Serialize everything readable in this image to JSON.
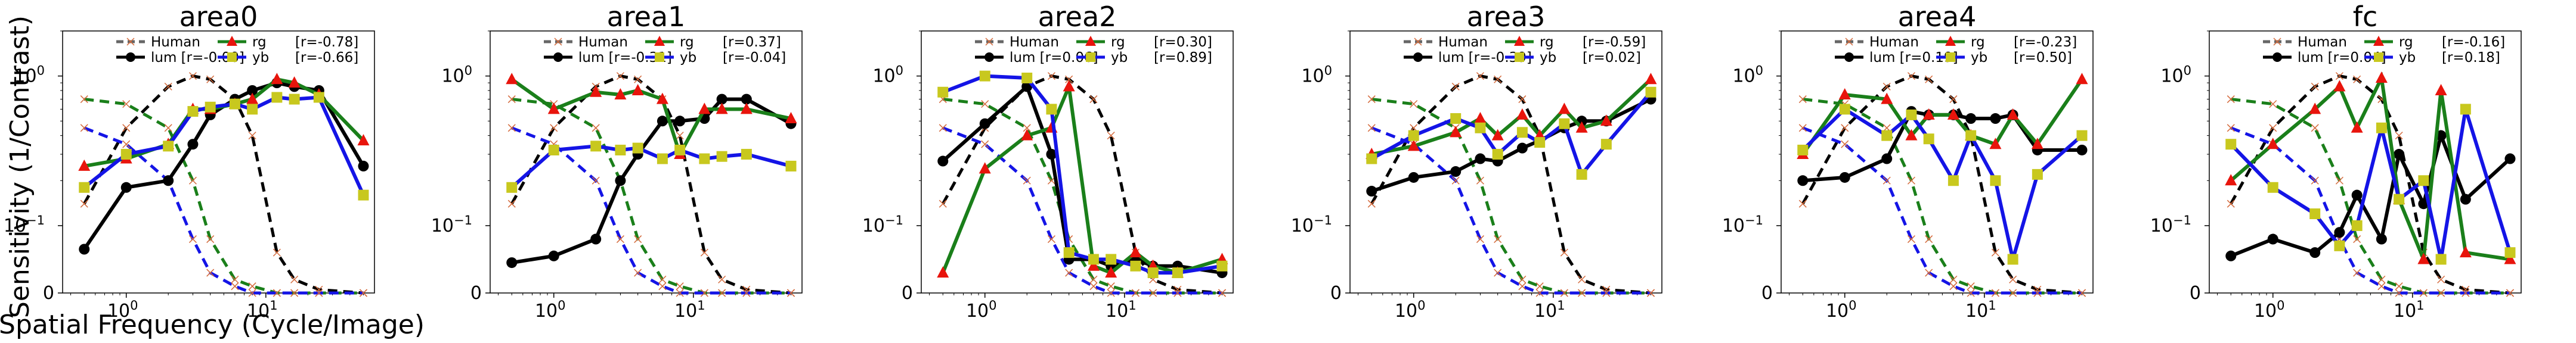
{
  "figure": {
    "ylabel": "Sensitivity (1/Contrast)",
    "xlabel": "Spatial Frequency (Cycle/Image)"
  },
  "colors": {
    "human": "#666666",
    "lum": "#000000",
    "rg_line": "#1a7f1a",
    "rg_marker": "#e8140c",
    "yb_line": "#1414e6",
    "yb_marker": "#c8c81e",
    "human_dash_lum": "#000000",
    "human_dash_rg": "#1a7f1a",
    "human_dash_yb": "#1414e6"
  },
  "chart_data": [
    {
      "type": "line",
      "title": "area0",
      "x": [
        0.5,
        1,
        2,
        3,
        4,
        6,
        8,
        12,
        16,
        24,
        50
      ],
      "xscale": "log",
      "yscale": "symlog",
      "ylim": [
        0,
        2
      ],
      "xticks": [
        "10^0",
        "10^1"
      ],
      "yticks": [
        "0",
        "10^-1",
        "10^0"
      ],
      "legend": {
        "placement": "top",
        "entries": [
          "Human",
          "lum [r=-0.00]",
          "rg",
          "[r=-0.78]",
          "yb",
          "[r=-0.66]"
        ]
      },
      "series": [
        {
          "name": "lum",
          "values": [
            0.065,
            0.18,
            0.2,
            0.35,
            0.55,
            0.7,
            0.8,
            0.9,
            0.85,
            0.8,
            0.25
          ]
        },
        {
          "name": "rg",
          "values": [
            0.25,
            0.28,
            0.35,
            0.6,
            0.6,
            0.65,
            0.7,
            0.95,
            0.9,
            0.75,
            0.37
          ]
        },
        {
          "name": "yb",
          "values": [
            0.18,
            0.3,
            0.34,
            0.58,
            0.62,
            0.65,
            0.6,
            0.72,
            0.7,
            0.72,
            0.16
          ]
        }
      ]
    },
    {
      "type": "line",
      "title": "area1",
      "x": [
        0.5,
        1,
        2,
        3,
        4,
        6,
        8,
        12,
        16,
        24,
        50
      ],
      "xscale": "log",
      "yscale": "symlog",
      "ylim": [
        0,
        2
      ],
      "xticks": [
        "10^0",
        "10^1"
      ],
      "yticks": [
        "0",
        "10^-1",
        "10^0"
      ],
      "legend": {
        "placement": "top",
        "entries": [
          "Human",
          "lum [r=-0.31]",
          "rg",
          "[r=0.37]",
          "yb",
          "[r=-0.04]"
        ]
      },
      "series": [
        {
          "name": "lum",
          "values": [
            0.045,
            0.055,
            0.08,
            0.2,
            0.3,
            0.5,
            0.5,
            0.52,
            0.7,
            0.7,
            0.48
          ]
        },
        {
          "name": "rg",
          "values": [
            0.95,
            0.6,
            0.78,
            0.75,
            0.8,
            0.7,
            0.3,
            0.6,
            0.6,
            0.6,
            0.52
          ]
        },
        {
          "name": "yb",
          "values": [
            0.18,
            0.32,
            0.34,
            0.32,
            0.33,
            0.28,
            0.32,
            0.28,
            0.29,
            0.3,
            0.25
          ]
        }
      ]
    },
    {
      "type": "line",
      "title": "area2",
      "x": [
        0.5,
        1,
        2,
        3,
        4,
        6,
        8,
        12,
        16,
        24,
        50
      ],
      "xscale": "log",
      "yscale": "symlog",
      "ylim": [
        0,
        2
      ],
      "xticks": [
        "10^0",
        "10^1"
      ],
      "yticks": [
        "0",
        "10^-1",
        "10^0"
      ],
      "legend": {
        "placement": "top",
        "entries": [
          "Human",
          "lum [r=0.06]",
          "rg",
          "[r=0.30]",
          "yb",
          "[r=0.89]"
        ]
      },
      "series": [
        {
          "name": "lum",
          "values": [
            0.27,
            0.48,
            0.85,
            0.3,
            0.05,
            0.05,
            0.04,
            0.05,
            0.04,
            0.04,
            0.03
          ]
        },
        {
          "name": "rg",
          "values": [
            0.03,
            0.24,
            0.4,
            0.45,
            0.85,
            0.04,
            0.03,
            0.06,
            0.04,
            0.03,
            0.05
          ]
        },
        {
          "name": "yb",
          "values": [
            0.78,
            1.0,
            0.97,
            0.6,
            0.06,
            0.05,
            0.05,
            0.04,
            0.03,
            0.03,
            0.04
          ]
        }
      ]
    },
    {
      "type": "line",
      "title": "area3",
      "x": [
        0.5,
        1,
        2,
        3,
        4,
        6,
        8,
        12,
        16,
        24,
        50
      ],
      "xscale": "log",
      "yscale": "symlog",
      "ylim": [
        0,
        2
      ],
      "xticks": [
        "10^0",
        "10^1"
      ],
      "yticks": [
        "0",
        "10^-1",
        "10^0"
      ],
      "legend": {
        "placement": "top",
        "entries": [
          "Human",
          "lum [r=-0.39]",
          "rg",
          "[r=-0.59]",
          "yb",
          "[r=0.02]"
        ]
      },
      "series": [
        {
          "name": "lum",
          "values": [
            0.17,
            0.21,
            0.23,
            0.28,
            0.27,
            0.33,
            0.37,
            0.45,
            0.5,
            0.5,
            0.7
          ]
        },
        {
          "name": "rg",
          "values": [
            0.3,
            0.34,
            0.42,
            0.52,
            0.4,
            0.55,
            0.4,
            0.6,
            0.45,
            0.5,
            0.95
          ]
        },
        {
          "name": "yb",
          "values": [
            0.28,
            0.4,
            0.52,
            0.45,
            0.3,
            0.42,
            0.36,
            0.48,
            0.22,
            0.35,
            0.78
          ]
        }
      ]
    },
    {
      "type": "line",
      "title": "area4",
      "x": [
        0.5,
        1,
        2,
        3,
        4,
        6,
        8,
        12,
        16,
        24,
        50
      ],
      "xscale": "log",
      "yscale": "symlog",
      "ylim": [
        0,
        2
      ],
      "xticks": [
        "10^0",
        "10^1"
      ],
      "yticks": [
        "0",
        "10^-1",
        "10^0"
      ],
      "legend": {
        "placement": "top",
        "entries": [
          "Human",
          "lum [r=0.19]",
          "rg",
          "[r=-0.23]",
          "yb",
          "[r=0.50]"
        ]
      },
      "series": [
        {
          "name": "lum",
          "values": [
            0.2,
            0.21,
            0.28,
            0.58,
            0.55,
            0.55,
            0.52,
            0.52,
            0.55,
            0.32,
            0.32
          ]
        },
        {
          "name": "rg",
          "values": [
            0.3,
            0.75,
            0.7,
            0.4,
            0.55,
            0.55,
            0.4,
            0.35,
            0.55,
            0.35,
            0.95
          ]
        },
        {
          "name": "yb",
          "values": [
            0.32,
            0.6,
            0.4,
            0.55,
            0.38,
            0.2,
            0.4,
            0.2,
            0.05,
            0.22,
            0.4
          ]
        }
      ]
    },
    {
      "type": "line",
      "title": "fc",
      "x": [
        0.5,
        1,
        2,
        3,
        4,
        6,
        8,
        12,
        16,
        24,
        50
      ],
      "xscale": "log",
      "yscale": "symlog",
      "ylim": [
        0,
        2
      ],
      "xticks": [
        "10^0",
        "10^1"
      ],
      "yticks": [
        "0",
        "10^-1",
        "10^0"
      ],
      "legend": {
        "placement": "top",
        "entries": [
          "Human",
          "lum [r=0.04]",
          "rg",
          "[r=-0.16]",
          "yb",
          "[r=0.18]"
        ]
      },
      "series": [
        {
          "name": "lum",
          "values": [
            0.055,
            0.08,
            0.06,
            0.09,
            0.16,
            0.08,
            0.3,
            0.14,
            0.4,
            0.15,
            0.28
          ]
        },
        {
          "name": "rg",
          "values": [
            0.2,
            0.35,
            0.6,
            0.85,
            0.45,
            0.97,
            0.15,
            0.05,
            0.8,
            0.06,
            0.05
          ]
        },
        {
          "name": "yb",
          "values": [
            0.35,
            0.18,
            0.12,
            0.07,
            0.1,
            0.45,
            0.15,
            0.2,
            0.05,
            0.6,
            0.06
          ]
        }
      ]
    }
  ],
  "human_curves": {
    "x": [
      0.5,
      1,
      2,
      3,
      4,
      6,
      8,
      12,
      16,
      24,
      50
    ],
    "lum": [
      0.14,
      0.45,
      0.85,
      1.0,
      0.95,
      0.7,
      0.4,
      0.06,
      0.02,
      0.005,
      0.0
    ],
    "rg": [
      0.7,
      0.65,
      0.45,
      0.2,
      0.08,
      0.02,
      0.01,
      0.0,
      0.0,
      0.0,
      0.0
    ],
    "yb": [
      0.45,
      0.35,
      0.2,
      0.08,
      0.03,
      0.01,
      0.0,
      0.0,
      0.0,
      0.0,
      0.0
    ]
  }
}
